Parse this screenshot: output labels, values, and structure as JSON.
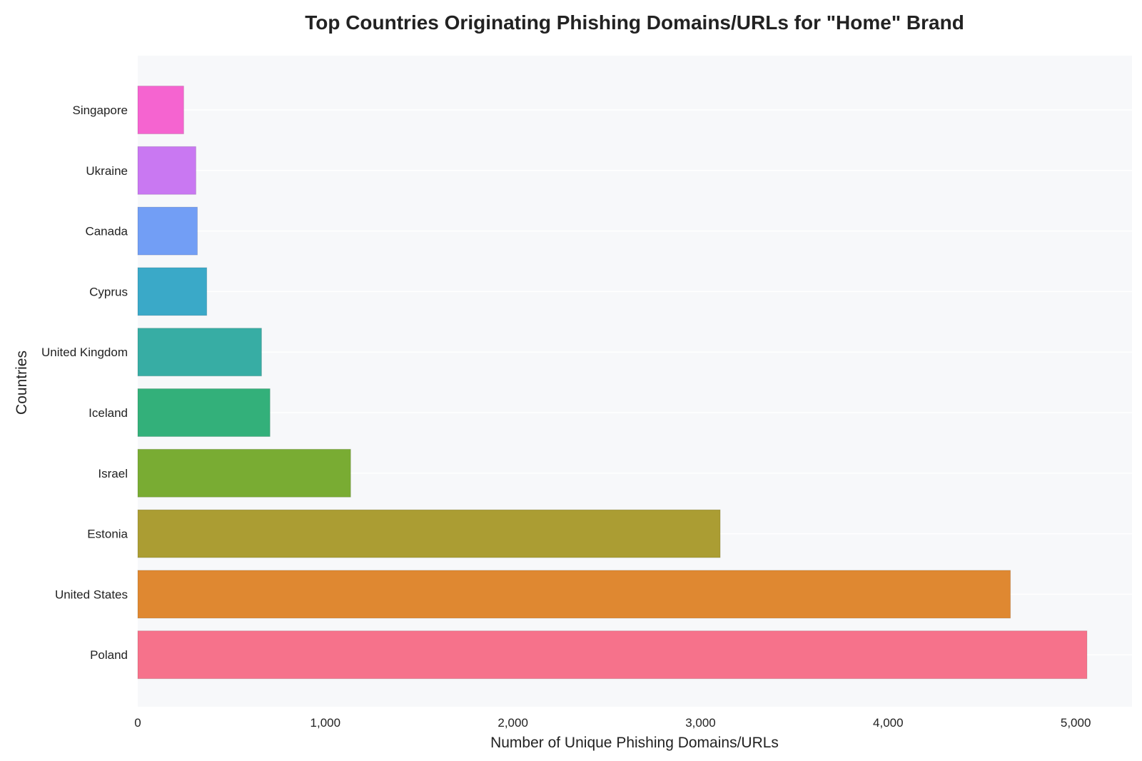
{
  "chart_data": {
    "type": "bar",
    "orientation": "horizontal",
    "title": "Top Countries Originating Phishing Domains/URLs for \"Home\" Brand",
    "xlabel": "Number of Unique Phishing Domains/URLs",
    "ylabel": "Countries",
    "xlim": [
      0,
      5300
    ],
    "xticks": [
      0,
      1000,
      2000,
      3000,
      4000,
      5000
    ],
    "xtick_labels": [
      "0",
      "1,000",
      "2,000",
      "3,000",
      "4,000",
      "5,000"
    ],
    "grid": "horizontal",
    "legend": "none",
    "categories": [
      "Singapore",
      "Ukraine",
      "Canada",
      "Cyprus",
      "United Kingdom",
      "Iceland",
      "Israel",
      "Estonia",
      "United States",
      "Poland"
    ],
    "values": [
      245,
      310,
      318,
      368,
      660,
      705,
      1135,
      3105,
      4652,
      5060
    ],
    "colors": [
      "#f564d0",
      "#c978f2",
      "#729ef5",
      "#3aa9c8",
      "#37ada4",
      "#33b07a",
      "#79ac33",
      "#ab9d33",
      "#df8831",
      "#f6728b"
    ]
  }
}
